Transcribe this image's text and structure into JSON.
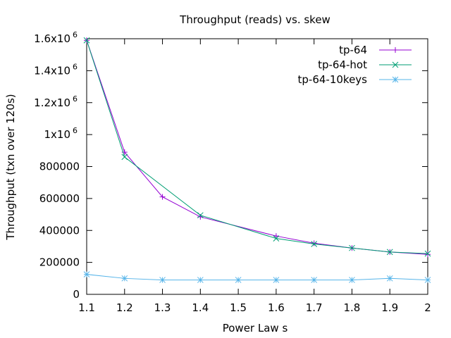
{
  "chart_data": {
    "type": "line",
    "title": "Throughput (reads) vs. skew",
    "xlabel": "Power Law s",
    "ylabel": "Throughput (txn over 120s)",
    "xlim": [
      1.1,
      2.0
    ],
    "ylim": [
      0,
      1600000
    ],
    "grid": false,
    "legend_position": "top-right",
    "x_ticks": [
      {
        "value": 1.1,
        "label": "1.1"
      },
      {
        "value": 1.2,
        "label": "1.2"
      },
      {
        "value": 1.3,
        "label": "1.3"
      },
      {
        "value": 1.4,
        "label": "1.4"
      },
      {
        "value": 1.5,
        "label": "1.5"
      },
      {
        "value": 1.6,
        "label": "1.6"
      },
      {
        "value": 1.7,
        "label": "1.7"
      },
      {
        "value": 1.8,
        "label": "1.8"
      },
      {
        "value": 1.9,
        "label": "1.9"
      },
      {
        "value": 2.0,
        "label": "2"
      }
    ],
    "y_ticks": [
      {
        "value": 0,
        "label": "0"
      },
      {
        "value": 200000,
        "label": "200000"
      },
      {
        "value": 400000,
        "label": "400000"
      },
      {
        "value": 600000,
        "label": "600000"
      },
      {
        "value": 800000,
        "label": "800000"
      },
      {
        "value": 1000000,
        "label": "1x10",
        "exp": "6"
      },
      {
        "value": 1200000,
        "label": "1.2x10",
        "exp": "6"
      },
      {
        "value": 1400000,
        "label": "1.4x10",
        "exp": "6"
      },
      {
        "value": 1600000,
        "label": "1.6x10",
        "exp": "6"
      }
    ],
    "series": [
      {
        "name": "tp-64",
        "color": "#9400d3",
        "marker": "plus",
        "x": [
          1.1,
          1.2,
          1.3,
          1.4,
          1.6,
          1.7,
          1.8,
          1.9,
          2.0
        ],
        "y": [
          1590000,
          890000,
          610000,
          485000,
          365000,
          320000,
          290000,
          265000,
          250000
        ]
      },
      {
        "name": "tp-64-hot",
        "color": "#009e73",
        "marker": "cross",
        "x": [
          1.1,
          1.2,
          1.4,
          1.6,
          1.7,
          1.8,
          1.9,
          2.0
        ],
        "y": [
          1590000,
          860000,
          495000,
          350000,
          315000,
          290000,
          265000,
          255000
        ]
      },
      {
        "name": "tp-64-10keys",
        "color": "#56b4e9",
        "marker": "star",
        "x": [
          1.1,
          1.2,
          1.3,
          1.4,
          1.5,
          1.6,
          1.7,
          1.8,
          1.9,
          2.0
        ],
        "y": [
          125000,
          100000,
          90000,
          90000,
          90000,
          90000,
          90000,
          90000,
          100000,
          90000
        ]
      }
    ]
  }
}
